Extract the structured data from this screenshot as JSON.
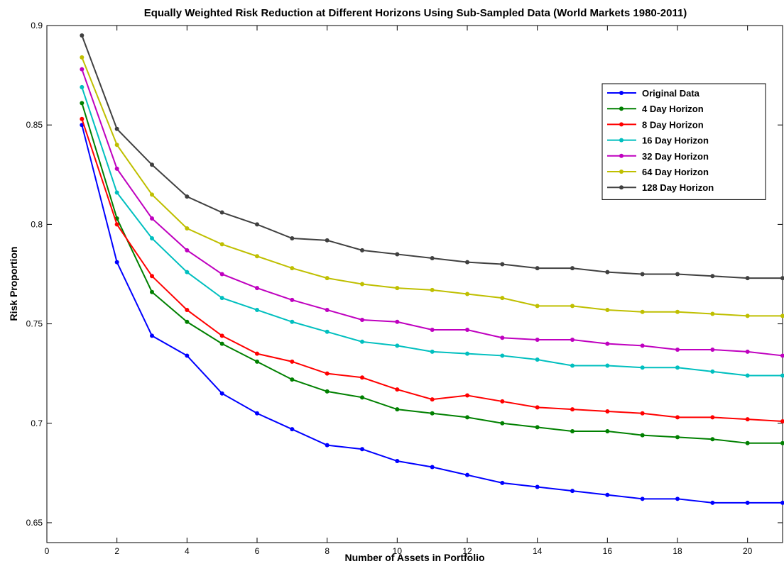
{
  "chart_data": {
    "type": "line",
    "title": "Equally Weighted Risk Reduction at Different Horizons Using Sub-Sampled Data (World Markets 1980-2011)",
    "xlabel": "Number of Assets in Portfolio",
    "ylabel": "Risk Proportion",
    "xlim": [
      0,
      21
    ],
    "ylim": [
      0.64,
      0.9
    ],
    "xticks": [
      "0",
      "2",
      "4",
      "6",
      "8",
      "10",
      "12",
      "14",
      "16",
      "18",
      "20"
    ],
    "yticks": [
      "0.65",
      "0.7",
      "0.75",
      "0.8",
      "0.85",
      "0.9"
    ],
    "grid": false,
    "legend_position": "top-right",
    "x": [
      1,
      2,
      3,
      4,
      5,
      6,
      7,
      8,
      9,
      10,
      11,
      12,
      13,
      14,
      15,
      16,
      17,
      18,
      19,
      20,
      21
    ],
    "series": [
      {
        "name": "Original Data",
        "color": "#0000ff",
        "values": [
          0.85,
          0.781,
          0.744,
          0.734,
          0.715,
          0.705,
          0.697,
          0.689,
          0.687,
          0.681,
          0.678,
          0.674,
          0.67,
          0.668,
          0.666,
          0.664,
          0.662,
          0.662,
          0.66,
          0.66,
          0.66
        ]
      },
      {
        "name": "4 Day Horizon",
        "color": "#008000",
        "values": [
          0.861,
          0.803,
          0.766,
          0.751,
          0.74,
          0.731,
          0.722,
          0.716,
          0.713,
          0.707,
          0.705,
          0.703,
          0.7,
          0.698,
          0.696,
          0.696,
          0.694,
          0.693,
          0.692,
          0.69,
          0.69
        ]
      },
      {
        "name": "8 Day Horizon",
        "color": "#ff0000",
        "values": [
          0.853,
          0.8,
          0.774,
          0.757,
          0.744,
          0.735,
          0.731,
          0.725,
          0.723,
          0.717,
          0.712,
          0.714,
          0.711,
          0.708,
          0.707,
          0.706,
          0.705,
          0.703,
          0.703,
          0.702,
          0.701
        ]
      },
      {
        "name": "16 Day Horizon",
        "color": "#00bfbf",
        "values": [
          0.869,
          0.816,
          0.793,
          0.776,
          0.763,
          0.757,
          0.751,
          0.746,
          0.741,
          0.739,
          0.736,
          0.735,
          0.734,
          0.732,
          0.729,
          0.729,
          0.728,
          0.728,
          0.726,
          0.724,
          0.724
        ]
      },
      {
        "name": "32 Day Horizon",
        "color": "#bf00bf",
        "values": [
          0.878,
          0.828,
          0.803,
          0.787,
          0.775,
          0.768,
          0.762,
          0.757,
          0.752,
          0.751,
          0.747,
          0.747,
          0.743,
          0.742,
          0.742,
          0.74,
          0.739,
          0.737,
          0.737,
          0.736,
          0.734
        ]
      },
      {
        "name": "64 Day Horizon",
        "color": "#bfbf00",
        "values": [
          0.884,
          0.84,
          0.815,
          0.798,
          0.79,
          0.784,
          0.778,
          0.773,
          0.77,
          0.768,
          0.767,
          0.765,
          0.763,
          0.759,
          0.759,
          0.757,
          0.756,
          0.756,
          0.755,
          0.754,
          0.754
        ]
      },
      {
        "name": "128 Day Horizon",
        "color": "#404040",
        "values": [
          0.895,
          0.848,
          0.83,
          0.814,
          0.806,
          0.8,
          0.793,
          0.792,
          0.787,
          0.785,
          0.783,
          0.781,
          0.78,
          0.778,
          0.778,
          0.776,
          0.775,
          0.775,
          0.774,
          0.773,
          0.773
        ]
      }
    ]
  }
}
